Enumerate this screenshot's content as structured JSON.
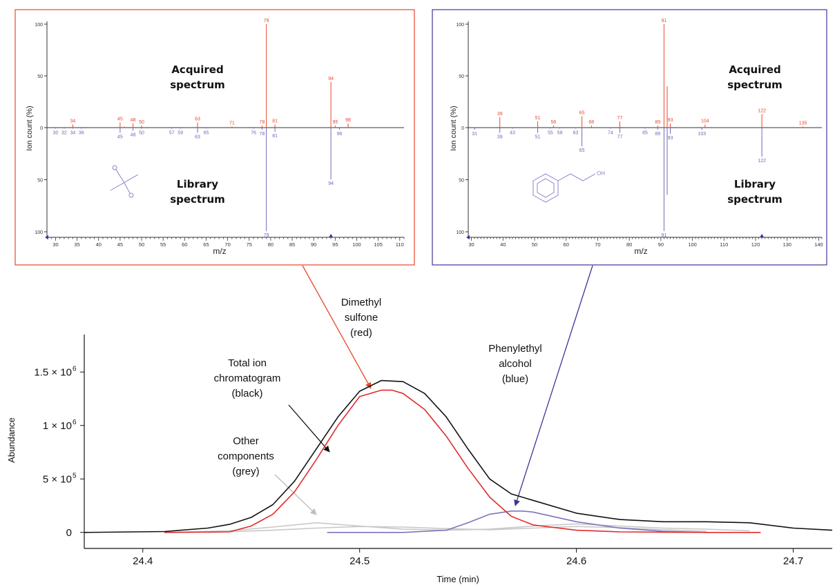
{
  "chart_data": [
    {
      "type": "bar",
      "id": "spectrum_dimethyl_sulfone",
      "border_color": "#e8472b",
      "xlabel": "m/z",
      "ylabel": "Ion count (%)",
      "xlim": [
        28,
        111
      ],
      "x_ticks": [
        30,
        35,
        40,
        45,
        50,
        55,
        60,
        65,
        70,
        75,
        80,
        85,
        90,
        95,
        100,
        105,
        110
      ],
      "y_ticks": [
        "100",
        "50",
        "0",
        "50",
        "100"
      ],
      "ylim": [
        -100,
        100
      ],
      "label_top": [
        "Acquired",
        "spectrum"
      ],
      "label_bottom": [
        "Library",
        "spectrum"
      ],
      "acquired": [
        {
          "mz": 34,
          "pct": 3
        },
        {
          "mz": 45,
          "pct": 5
        },
        {
          "mz": 46,
          "pct": 1
        },
        {
          "mz": 48,
          "pct": 4
        },
        {
          "mz": 50,
          "pct": 2
        },
        {
          "mz": 63,
          "pct": 5
        },
        {
          "mz": 71,
          "pct": 1
        },
        {
          "mz": 78,
          "pct": 2
        },
        {
          "mz": 79,
          "pct": 100
        },
        {
          "mz": 81,
          "pct": 3
        },
        {
          "mz": 94,
          "pct": 44
        },
        {
          "mz": 95,
          "pct": 2
        },
        {
          "mz": 98,
          "pct": 4
        }
      ],
      "acquired_labels": [
        {
          "mz": 34,
          "text": "34"
        },
        {
          "mz": 45,
          "text": "45"
        },
        {
          "mz": 48,
          "text": "48"
        },
        {
          "mz": 50,
          "text": "50"
        },
        {
          "mz": 63,
          "text": "63"
        },
        {
          "mz": 71,
          "text": "71"
        },
        {
          "mz": 78,
          "text": "78"
        },
        {
          "mz": 79,
          "text": "79"
        },
        {
          "mz": 81,
          "text": "81"
        },
        {
          "mz": 94,
          "text": "94"
        },
        {
          "mz": 95,
          "text": "95"
        },
        {
          "mz": 98,
          "text": "98"
        }
      ],
      "library": [
        {
          "mz": 30,
          "pct": 1
        },
        {
          "mz": 32,
          "pct": 1
        },
        {
          "mz": 34,
          "pct": 1
        },
        {
          "mz": 36,
          "pct": 1
        },
        {
          "mz": 45,
          "pct": 5
        },
        {
          "mz": 48,
          "pct": 3
        },
        {
          "mz": 50,
          "pct": 1
        },
        {
          "mz": 57,
          "pct": 1
        },
        {
          "mz": 59,
          "pct": 1
        },
        {
          "mz": 63,
          "pct": 5
        },
        {
          "mz": 65,
          "pct": 1
        },
        {
          "mz": 76,
          "pct": 1
        },
        {
          "mz": 78,
          "pct": 2
        },
        {
          "mz": 79,
          "pct": 100
        },
        {
          "mz": 81,
          "pct": 4
        },
        {
          "mz": 94,
          "pct": 50
        },
        {
          "mz": 96,
          "pct": 2
        }
      ],
      "library_labels": [
        {
          "mz": 30,
          "text": "30"
        },
        {
          "mz": 32,
          "text": "32"
        },
        {
          "mz": 34,
          "text": "34"
        },
        {
          "mz": 36,
          "text": "36"
        },
        {
          "mz": 45,
          "text": "45"
        },
        {
          "mz": 48,
          "text": "48"
        },
        {
          "mz": 50,
          "text": "50"
        },
        {
          "mz": 57,
          "text": "57"
        },
        {
          "mz": 59,
          "text": "59"
        },
        {
          "mz": 63,
          "text": "63"
        },
        {
          "mz": 65,
          "text": "65"
        },
        {
          "mz": 76,
          "text": "76"
        },
        {
          "mz": 78,
          "text": "78"
        },
        {
          "mz": 79,
          "text": "79"
        },
        {
          "mz": 81,
          "text": "81"
        },
        {
          "mz": 94,
          "text": "94"
        },
        {
          "mz": 96,
          "text": "96"
        }
      ],
      "marker_mz": 94
    },
    {
      "type": "bar",
      "id": "spectrum_phenylethyl_alcohol",
      "border_color": "#3b3596",
      "xlabel": "m/z",
      "ylabel": "Ion count (%)",
      "xlim": [
        29,
        141
      ],
      "x_ticks": [
        30,
        40,
        50,
        60,
        70,
        80,
        90,
        100,
        110,
        120,
        130,
        140
      ],
      "y_ticks": [
        "100",
        "50",
        "0",
        "50",
        "100"
      ],
      "ylim": [
        -100,
        100
      ],
      "label_top": [
        "Acquired",
        "spectrum"
      ],
      "label_bottom": [
        "Library",
        "spectrum"
      ],
      "structure_label": "OH",
      "acquired": [
        {
          "mz": 39,
          "pct": 10
        },
        {
          "mz": 51,
          "pct": 6
        },
        {
          "mz": 56,
          "pct": 2
        },
        {
          "mz": 65,
          "pct": 11
        },
        {
          "mz": 68,
          "pct": 2
        },
        {
          "mz": 77,
          "pct": 6
        },
        {
          "mz": 89,
          "pct": 2
        },
        {
          "mz": 91,
          "pct": 100
        },
        {
          "mz": 92,
          "pct": 40
        },
        {
          "mz": 93,
          "pct": 4
        },
        {
          "mz": 104,
          "pct": 3
        },
        {
          "mz": 122,
          "pct": 13
        },
        {
          "mz": 135,
          "pct": 1
        }
      ],
      "acquired_labels": [
        {
          "mz": 39,
          "text": "39"
        },
        {
          "mz": 51,
          "text": "51"
        },
        {
          "mz": 56,
          "text": "56"
        },
        {
          "mz": 65,
          "text": "65"
        },
        {
          "mz": 68,
          "text": "68"
        },
        {
          "mz": 77,
          "text": "77"
        },
        {
          "mz": 89,
          "text": "89"
        },
        {
          "mz": 91,
          "text": "91"
        },
        {
          "mz": 93,
          "text": "93"
        },
        {
          "mz": 104,
          "text": "104"
        },
        {
          "mz": 122,
          "text": "122"
        },
        {
          "mz": 135,
          "text": "135"
        }
      ],
      "library": [
        {
          "mz": 31,
          "pct": 2
        },
        {
          "mz": 39,
          "pct": 5
        },
        {
          "mz": 43,
          "pct": 1
        },
        {
          "mz": 51,
          "pct": 5
        },
        {
          "mz": 55,
          "pct": 1
        },
        {
          "mz": 58,
          "pct": 1
        },
        {
          "mz": 63,
          "pct": 1
        },
        {
          "mz": 65,
          "pct": 18
        },
        {
          "mz": 74,
          "pct": 1
        },
        {
          "mz": 77,
          "pct": 5
        },
        {
          "mz": 85,
          "pct": 1
        },
        {
          "mz": 89,
          "pct": 2
        },
        {
          "mz": 91,
          "pct": 100
        },
        {
          "mz": 92,
          "pct": 65
        },
        {
          "mz": 93,
          "pct": 6
        },
        {
          "mz": 103,
          "pct": 2
        },
        {
          "mz": 122,
          "pct": 28
        }
      ],
      "library_labels": [
        {
          "mz": 31,
          "text": "31"
        },
        {
          "mz": 39,
          "text": "39"
        },
        {
          "mz": 43,
          "text": "43"
        },
        {
          "mz": 51,
          "text": "51"
        },
        {
          "mz": 55,
          "text": "55"
        },
        {
          "mz": 58,
          "text": "58"
        },
        {
          "mz": 63,
          "text": "63"
        },
        {
          "mz": 65,
          "text": "65"
        },
        {
          "mz": 74,
          "text": "74"
        },
        {
          "mz": 77,
          "text": "77"
        },
        {
          "mz": 85,
          "text": "85"
        },
        {
          "mz": 89,
          "text": "89"
        },
        {
          "mz": 91,
          "text": "91"
        },
        {
          "mz": 93,
          "text": "93"
        },
        {
          "mz": 103,
          "text": "103"
        },
        {
          "mz": 122,
          "text": "122"
        }
      ],
      "marker_mz": 122
    },
    {
      "type": "line",
      "id": "chromatogram",
      "xlabel": "Time (min)",
      "ylabel": "Abundance",
      "xlim": [
        24.373,
        24.718
      ],
      "ylim": [
        -150000,
        1850000
      ],
      "x_ticks": [
        24.4,
        24.5,
        24.6,
        24.7
      ],
      "y_ticks": [
        {
          "value": 0,
          "mantissa": "0",
          "exp": ""
        },
        {
          "value": 500000,
          "mantissa": "5 × 10",
          "exp": "5"
        },
        {
          "value": 1000000,
          "mantissa": "1 × 10",
          "exp": "6"
        },
        {
          "value": 1500000,
          "mantissa": "1.5 × 10",
          "exp": "6"
        }
      ],
      "series": [
        {
          "color": "#111111",
          "x": [
            24.373,
            24.41,
            24.43,
            24.44,
            24.45,
            24.46,
            24.47,
            24.48,
            24.49,
            24.5,
            24.505,
            24.51,
            24.52,
            24.53,
            24.54,
            24.55,
            24.56,
            24.57,
            24.58,
            24.6,
            24.62,
            24.64,
            24.66,
            24.68,
            24.7,
            24.718
          ],
          "y": [
            0,
            8000,
            40000,
            75000,
            140000,
            260000,
            480000,
            780000,
            1080000,
            1320000,
            1370000,
            1420000,
            1410000,
            1300000,
            1080000,
            780000,
            500000,
            360000,
            300000,
            180000,
            120000,
            100000,
            100000,
            90000,
            40000,
            20000
          ]
        },
        {
          "color": "#e02b2b",
          "x": [
            24.41,
            24.44,
            24.45,
            24.46,
            24.47,
            24.48,
            24.49,
            24.5,
            24.51,
            24.515,
            24.52,
            24.53,
            24.54,
            24.55,
            24.56,
            24.57,
            24.58,
            24.6,
            24.62,
            24.64,
            24.66,
            24.685
          ],
          "y": [
            0,
            5000,
            60000,
            170000,
            380000,
            680000,
            1000000,
            1270000,
            1330000,
            1330000,
            1300000,
            1150000,
            900000,
            600000,
            330000,
            150000,
            70000,
            20000,
            5000,
            2000,
            0,
            0
          ]
        },
        {
          "color": "#7d73bd",
          "x": [
            24.485,
            24.52,
            24.54,
            24.55,
            24.56,
            24.57,
            24.575,
            24.58,
            24.6,
            24.62,
            24.64,
            24.66
          ],
          "y": [
            0,
            0,
            20000,
            90000,
            170000,
            200000,
            200000,
            190000,
            100000,
            40000,
            10000,
            0
          ]
        },
        {
          "color": "#c8c8c8",
          "x": [
            24.41,
            24.44,
            24.46,
            24.48,
            24.5,
            24.52,
            24.54,
            24.56,
            24.58,
            24.6,
            24.62,
            24.64,
            24.66,
            24.68
          ],
          "y": [
            0,
            15000,
            50000,
            90000,
            60000,
            30000,
            20000,
            30000,
            60000,
            80000,
            60000,
            40000,
            30000,
            15000
          ]
        },
        {
          "color": "#c8c8c8",
          "x": [
            24.43,
            24.46,
            24.48,
            24.5,
            24.52,
            24.54,
            24.56,
            24.58,
            24.6,
            24.62,
            24.64,
            24.66
          ],
          "y": [
            0,
            20000,
            40000,
            55000,
            50000,
            35000,
            25000,
            40000,
            55000,
            45000,
            25000,
            10000
          ]
        }
      ]
    }
  ],
  "annotations": {
    "dimethyl": [
      "Dimethyl",
      "sulfone",
      "(red)"
    ],
    "tic": [
      "Total ion",
      "chromatogram",
      "(black)"
    ],
    "other": [
      "Other",
      "components",
      "(grey)"
    ],
    "phenyl": [
      "Phenylethyl",
      "alcohol",
      "(blue)"
    ]
  },
  "colors": {
    "acquired": "#e8472b",
    "library": "#6e67b8",
    "structure": "#8a83c6",
    "arrow_red": "#e8472b",
    "arrow_blue": "#3b3596",
    "arrow_grey": "#bdbdbd",
    "arrow_black": "#111111"
  }
}
